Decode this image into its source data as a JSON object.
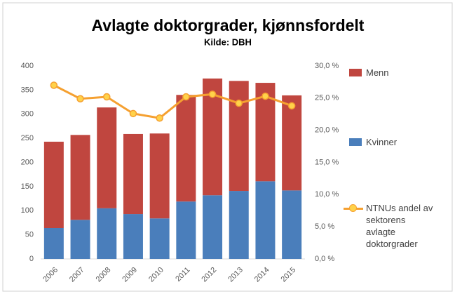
{
  "chart_data": {
    "type": "bar",
    "title": "Avlagte doktorgrader, kjønnsfordelt",
    "subtitle": "Kilde: DBH",
    "categories": [
      "2006",
      "2007",
      "2008",
      "2009",
      "2010",
      "2011",
      "2012",
      "2013",
      "2014",
      "2015"
    ],
    "stacked": true,
    "series": [
      {
        "name": "Kvinner",
        "color": "#4a7ebb",
        "values": [
          64,
          81,
          105,
          93,
          84,
          119,
          132,
          141,
          161,
          142
        ]
      },
      {
        "name": "Menn",
        "color": "#c0463f",
        "values": [
          179,
          176,
          209,
          166,
          176,
          221,
          242,
          228,
          204,
          197
        ]
      },
      {
        "name": "NTNUs andel av sektorens avlagte doktorgrader",
        "type": "line",
        "axis": "y2",
        "color": "#f5a030",
        "marker_color": "#ffd24a",
        "values": [
          27.0,
          24.9,
          25.2,
          22.6,
          21.9,
          25.2,
          25.6,
          24.2,
          25.3,
          23.8
        ]
      }
    ],
    "ylim": [
      0,
      400
    ],
    "yticks": [
      0,
      50,
      100,
      150,
      200,
      250,
      300,
      350,
      400
    ],
    "y2lim": [
      0,
      30
    ],
    "y2ticks": [
      {
        "value": 0,
        "label": "0,0 %"
      },
      {
        "value": 5,
        "label": "5,0 %"
      },
      {
        "value": 10,
        "label": "10,0 %"
      },
      {
        "value": 15,
        "label": "15,0 %"
      },
      {
        "value": 20,
        "label": "20,0 %"
      },
      {
        "value": 25,
        "label": "25,0 %"
      },
      {
        "value": 30,
        "label": "30,0 %"
      }
    ],
    "grid": false,
    "legend": "right"
  }
}
